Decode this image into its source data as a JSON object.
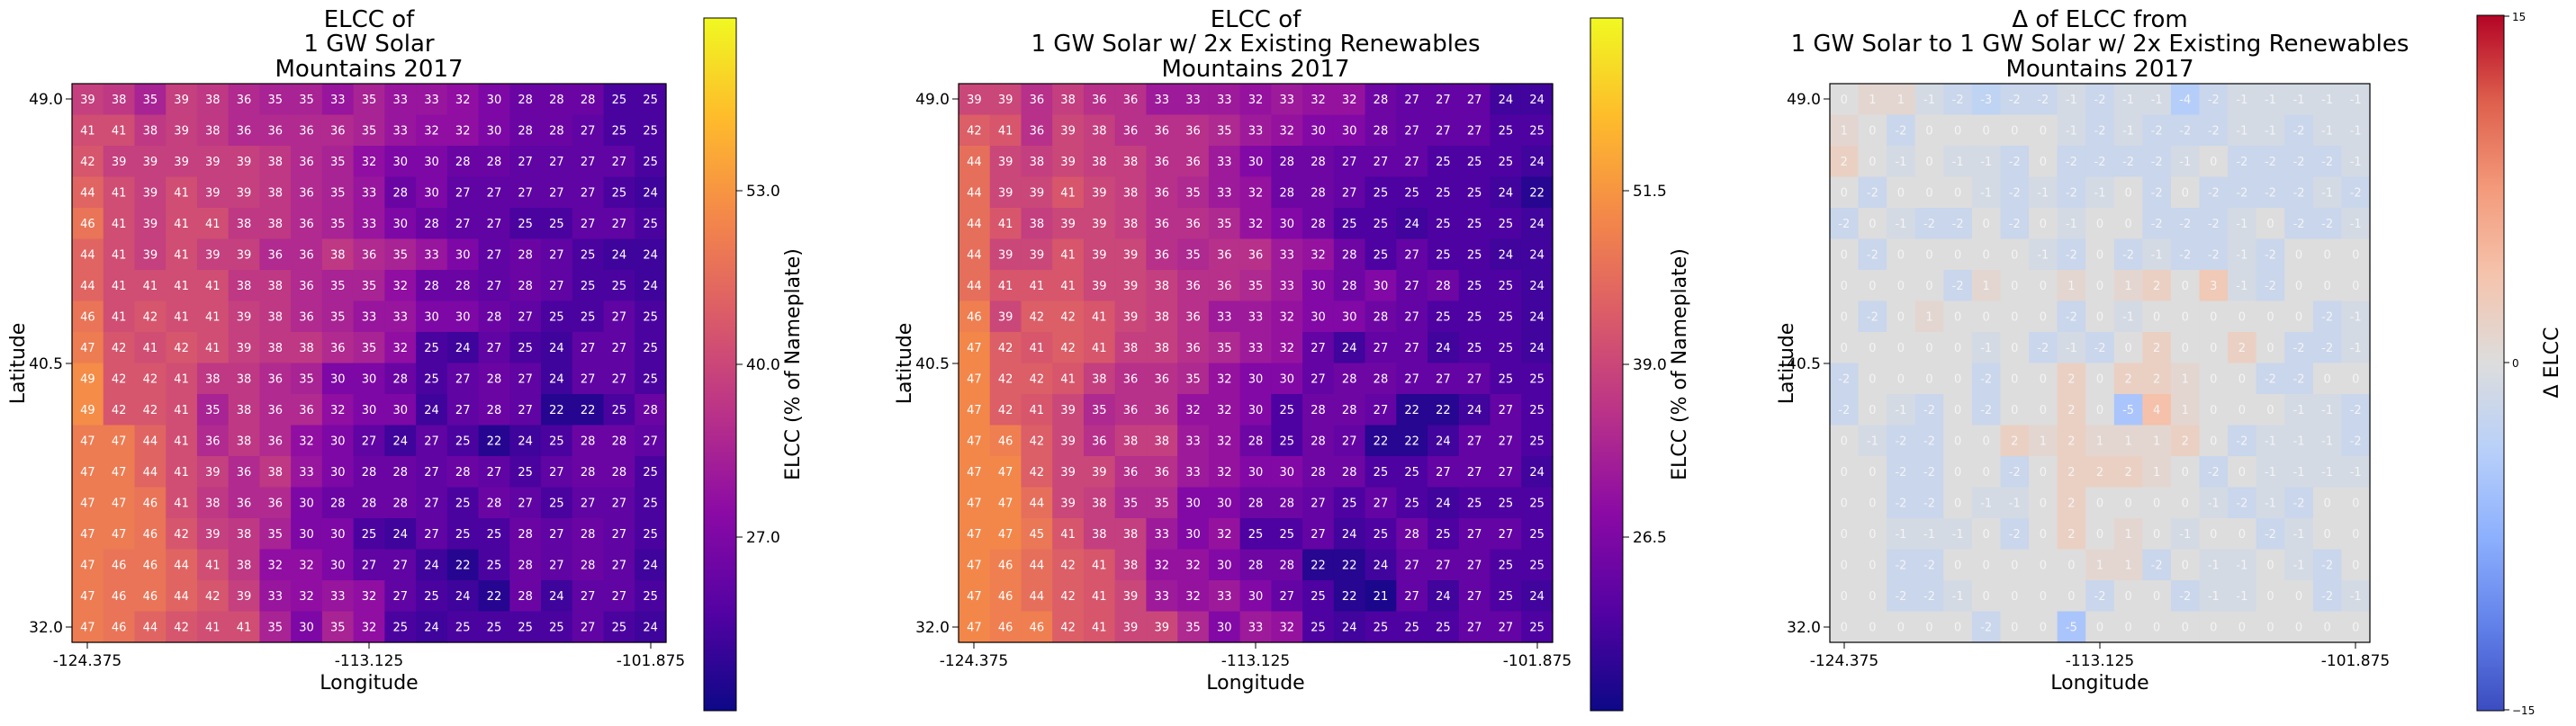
{
  "chart_data": [
    {
      "type": "heatmap",
      "title_lines": [
        "ELCC of",
        "1 GW Solar",
        "Mountains 2017"
      ],
      "xlabel": "Longitude",
      "ylabel": "Latitude",
      "xticks": [
        "-124.375",
        "-113.125",
        "-101.875"
      ],
      "yticks": [
        "49.0",
        "40.5",
        "32.0"
      ],
      "colormap": "plasma",
      "colorbar": {
        "label": "ELCC (% of Nameplate)",
        "min": 20.0,
        "max": 60.0,
        "ticks": [
          "27.0",
          "40.0",
          "53.0"
        ]
      },
      "rows_top_to_bottom": [
        [
          39,
          38,
          35,
          39,
          38,
          36,
          35,
          35,
          33,
          35,
          33,
          33,
          32,
          30,
          28,
          28,
          28,
          25,
          25
        ],
        [
          41,
          41,
          38,
          39,
          38,
          36,
          36,
          36,
          36,
          35,
          33,
          32,
          32,
          30,
          28,
          28,
          27,
          25,
          25
        ],
        [
          42,
          39,
          39,
          39,
          39,
          39,
          38,
          36,
          35,
          32,
          30,
          30,
          28,
          28,
          27,
          27,
          27,
          27,
          25
        ],
        [
          44,
          41,
          39,
          41,
          39,
          39,
          38,
          36,
          35,
          33,
          28,
          30,
          27,
          27,
          27,
          27,
          27,
          25,
          24
        ],
        [
          46,
          41,
          39,
          41,
          41,
          38,
          38,
          36,
          35,
          33,
          30,
          28,
          27,
          27,
          25,
          25,
          27,
          27,
          25
        ],
        [
          44,
          41,
          39,
          41,
          39,
          39,
          36,
          36,
          38,
          36,
          35,
          33,
          30,
          27,
          28,
          27,
          25,
          24,
          24
        ],
        [
          44,
          41,
          41,
          41,
          41,
          38,
          38,
          36,
          35,
          35,
          32,
          28,
          28,
          27,
          28,
          27,
          25,
          25,
          24
        ],
        [
          46,
          41,
          42,
          41,
          41,
          39,
          38,
          36,
          35,
          33,
          33,
          30,
          30,
          28,
          27,
          25,
          25,
          27,
          25
        ],
        [
          47,
          42,
          41,
          42,
          41,
          39,
          38,
          38,
          36,
          35,
          32,
          25,
          24,
          27,
          25,
          24,
          27,
          27,
          25
        ],
        [
          49,
          42,
          42,
          41,
          38,
          38,
          36,
          35,
          30,
          30,
          28,
          25,
          27,
          28,
          27,
          24,
          27,
          27,
          25
        ],
        [
          49,
          42,
          42,
          41,
          35,
          38,
          36,
          36,
          32,
          30,
          30,
          24,
          27,
          28,
          27,
          22,
          22,
          25,
          28
        ],
        [
          47,
          47,
          44,
          41,
          36,
          38,
          36,
          32,
          30,
          27,
          24,
          27,
          25,
          22,
          24,
          25,
          28,
          28,
          27
        ],
        [
          47,
          47,
          44,
          41,
          39,
          36,
          38,
          33,
          30,
          28,
          28,
          27,
          28,
          27,
          25,
          27,
          28,
          28,
          25
        ],
        [
          47,
          47,
          46,
          41,
          38,
          36,
          36,
          30,
          28,
          28,
          28,
          27,
          25,
          28,
          27,
          25,
          27,
          27,
          25
        ],
        [
          47,
          47,
          46,
          42,
          39,
          38,
          35,
          30,
          30,
          25,
          24,
          27,
          25,
          25,
          28,
          27,
          28,
          27,
          25
        ],
        [
          47,
          46,
          46,
          44,
          41,
          38,
          32,
          32,
          30,
          27,
          27,
          24,
          22,
          25,
          28,
          27,
          28,
          27,
          24
        ],
        [
          47,
          46,
          46,
          44,
          42,
          39,
          33,
          32,
          33,
          32,
          27,
          25,
          24,
          22,
          28,
          24,
          27,
          27,
          25
        ],
        [
          47,
          46,
          44,
          42,
          41,
          41,
          35,
          30,
          35,
          32,
          25,
          24,
          25,
          25,
          25,
          25,
          27,
          25,
          24
        ]
      ]
    },
    {
      "type": "heatmap",
      "title_lines": [
        "ELCC of",
        "1 GW Solar w/ 2x Existing Renewables",
        "Mountains 2017"
      ],
      "xlabel": "Longitude",
      "ylabel": "Latitude",
      "xticks": [
        "-124.375",
        "-113.125",
        "-101.875"
      ],
      "yticks": [
        "49.0",
        "40.5",
        "32.0"
      ],
      "colormap": "plasma",
      "colorbar": {
        "label": "ELCC (% of Nameplate)",
        "min": 20.0,
        "max": 58.0,
        "ticks": [
          "26.5",
          "39.0",
          "51.5"
        ]
      },
      "rows_top_to_bottom": [
        [
          39,
          39,
          36,
          38,
          36,
          36,
          33,
          33,
          33,
          32,
          33,
          32,
          32,
          28,
          27,
          27,
          27,
          24,
          24
        ],
        [
          42,
          41,
          36,
          39,
          38,
          36,
          36,
          36,
          35,
          33,
          32,
          30,
          30,
          28,
          27,
          27,
          27,
          25,
          25
        ],
        [
          44,
          39,
          38,
          39,
          38,
          38,
          36,
          36,
          33,
          30,
          28,
          28,
          27,
          27,
          27,
          25,
          25,
          25,
          24
        ],
        [
          44,
          39,
          39,
          41,
          39,
          38,
          36,
          35,
          33,
          32,
          28,
          28,
          27,
          25,
          25,
          25,
          25,
          24,
          22
        ],
        [
          44,
          41,
          38,
          39,
          39,
          38,
          36,
          36,
          35,
          32,
          30,
          28,
          25,
          25,
          24,
          25,
          25,
          25,
          24
        ],
        [
          44,
          39,
          39,
          41,
          39,
          39,
          36,
          35,
          36,
          36,
          33,
          32,
          28,
          25,
          27,
          25,
          25,
          24,
          24
        ],
        [
          44,
          41,
          41,
          41,
          39,
          39,
          38,
          36,
          36,
          35,
          33,
          30,
          28,
          30,
          27,
          28,
          25,
          25,
          24
        ],
        [
          46,
          39,
          42,
          42,
          41,
          39,
          38,
          36,
          33,
          33,
          32,
          30,
          30,
          28,
          27,
          25,
          25,
          25,
          24
        ],
        [
          47,
          42,
          41,
          42,
          41,
          38,
          38,
          36,
          35,
          33,
          32,
          27,
          24,
          27,
          27,
          24,
          25,
          25,
          24
        ],
        [
          47,
          42,
          42,
          41,
          38,
          36,
          36,
          35,
          32,
          30,
          30,
          27,
          28,
          28,
          27,
          27,
          27,
          25,
          25
        ],
        [
          47,
          42,
          41,
          39,
          35,
          36,
          36,
          32,
          32,
          30,
          25,
          28,
          28,
          27,
          22,
          22,
          24,
          27,
          25
        ],
        [
          47,
          46,
          42,
          39,
          36,
          38,
          38,
          33,
          32,
          28,
          25,
          28,
          27,
          22,
          22,
          24,
          27,
          27,
          25
        ],
        [
          47,
          47,
          42,
          39,
          39,
          36,
          36,
          33,
          32,
          30,
          30,
          28,
          28,
          25,
          25,
          27,
          27,
          27,
          24
        ],
        [
          47,
          47,
          44,
          39,
          38,
          35,
          35,
          30,
          30,
          28,
          28,
          27,
          25,
          27,
          25,
          24,
          25,
          25,
          25
        ],
        [
          47,
          47,
          45,
          41,
          38,
          38,
          33,
          30,
          32,
          25,
          25,
          27,
          24,
          25,
          28,
          25,
          27,
          27,
          25
        ],
        [
          47,
          46,
          44,
          42,
          41,
          38,
          32,
          32,
          30,
          28,
          28,
          22,
          22,
          24,
          27,
          27,
          27,
          25,
          25
        ],
        [
          47,
          46,
          44,
          42,
          41,
          39,
          33,
          32,
          33,
          30,
          27,
          25,
          22,
          21,
          27,
          24,
          27,
          25,
          24
        ],
        [
          47,
          46,
          46,
          42,
          41,
          39,
          39,
          35,
          30,
          33,
          32,
          25,
          24,
          25,
          25,
          25,
          27,
          27,
          25
        ]
      ]
    },
    {
      "type": "heatmap",
      "title_lines": [
        "Δ of ELCC from",
        "1 GW Solar to 1 GW Solar w/ 2x Existing Renewables",
        "Mountains 2017"
      ],
      "xlabel": "Longitude",
      "ylabel": "Latitude",
      "xticks": [
        "-124.375",
        "-113.125",
        "-101.875"
      ],
      "yticks": [
        "49.0",
        "40.5",
        "32.0"
      ],
      "colormap": "coolwarm",
      "colorbar": {
        "label": "Δ ELCC",
        "min": -15,
        "max": 15,
        "ticks": [
          "−15",
          "0",
          "15"
        ]
      },
      "rows_top_to_bottom": [
        [
          0,
          1,
          1,
          -1,
          -2,
          -3,
          -2,
          -2,
          -1,
          -2,
          -1,
          -1,
          -4,
          -2,
          -1,
          -1,
          -1,
          -1,
          -1
        ],
        [
          1,
          0,
          -2,
          0,
          0,
          0,
          0,
          0,
          -1,
          -2,
          -1,
          -2,
          -2,
          -2,
          -1,
          -1,
          -2,
          -1,
          -1
        ],
        [
          2,
          0,
          -1,
          0,
          -1,
          -1,
          -2,
          0,
          -2,
          -2,
          -2,
          -2,
          -1,
          0,
          -2,
          -2,
          -2,
          -2,
          -1
        ],
        [
          0,
          -2,
          0,
          0,
          0,
          -1,
          -2,
          -1,
          -2,
          -1,
          0,
          -2,
          0,
          -2,
          -2,
          -2,
          -2,
          -1,
          -2
        ],
        [
          -2,
          0,
          -1,
          -2,
          -2,
          0,
          -2,
          0,
          -1,
          0,
          0,
          -2,
          -2,
          -2,
          -1,
          0,
          -2,
          -2,
          -1
        ],
        [
          0,
          -2,
          0,
          0,
          0,
          0,
          0,
          -1,
          -2,
          0,
          -2,
          -1,
          -2,
          -2,
          -1,
          -2,
          0,
          0,
          0
        ],
        [
          0,
          0,
          0,
          0,
          -2,
          1,
          0,
          0,
          1,
          0,
          1,
          2,
          0,
          3,
          -1,
          -2,
          0,
          0,
          0
        ],
        [
          0,
          -2,
          0,
          1,
          0,
          0,
          0,
          0,
          -2,
          0,
          -1,
          0,
          0,
          0,
          0,
          0,
          0,
          -2,
          -1
        ],
        [
          0,
          0,
          0,
          0,
          0,
          -1,
          0,
          -2,
          -1,
          -2,
          0,
          2,
          0,
          0,
          2,
          0,
          -2,
          -2,
          -1
        ],
        [
          -2,
          0,
          0,
          0,
          0,
          -2,
          0,
          0,
          2,
          0,
          2,
          2,
          1,
          0,
          0,
          -2,
          -2,
          0,
          0
        ],
        [
          -2,
          0,
          -1,
          -2,
          0,
          -2,
          0,
          0,
          2,
          0,
          -5,
          4,
          1,
          0,
          0,
          0,
          -1,
          -1,
          -2
        ],
        [
          0,
          -1,
          -2,
          -2,
          0,
          0,
          2,
          1,
          2,
          1,
          1,
          1,
          2,
          0,
          -2,
          -1,
          -1,
          -1,
          -2
        ],
        [
          0,
          0,
          -2,
          -2,
          0,
          0,
          -2,
          0,
          2,
          2,
          2,
          1,
          0,
          -2,
          0,
          -1,
          -1,
          -1,
          -1
        ],
        [
          0,
          0,
          -2,
          -2,
          0,
          -1,
          -1,
          0,
          2,
          0,
          0,
          0,
          0,
          -1,
          -2,
          -1,
          -2,
          0,
          0
        ],
        [
          0,
          0,
          -1,
          -1,
          -1,
          0,
          -2,
          0,
          2,
          0,
          1,
          0,
          -1,
          0,
          0,
          -2,
          -1,
          0,
          0
        ],
        [
          0,
          0,
          -2,
          -2,
          0,
          0,
          0,
          0,
          0,
          1,
          1,
          -2,
          0,
          -1,
          -1,
          0,
          -1,
          -2,
          0
        ],
        [
          0,
          0,
          -2,
          -2,
          -1,
          0,
          0,
          0,
          0,
          -2,
          0,
          0,
          -2,
          -1,
          -1,
          0,
          0,
          -2,
          -1
        ],
        [
          0,
          0,
          0,
          0,
          0,
          -2,
          0,
          0,
          -5,
          0,
          0,
          0,
          0,
          0,
          0,
          0,
          0,
          0,
          0
        ]
      ]
    }
  ]
}
